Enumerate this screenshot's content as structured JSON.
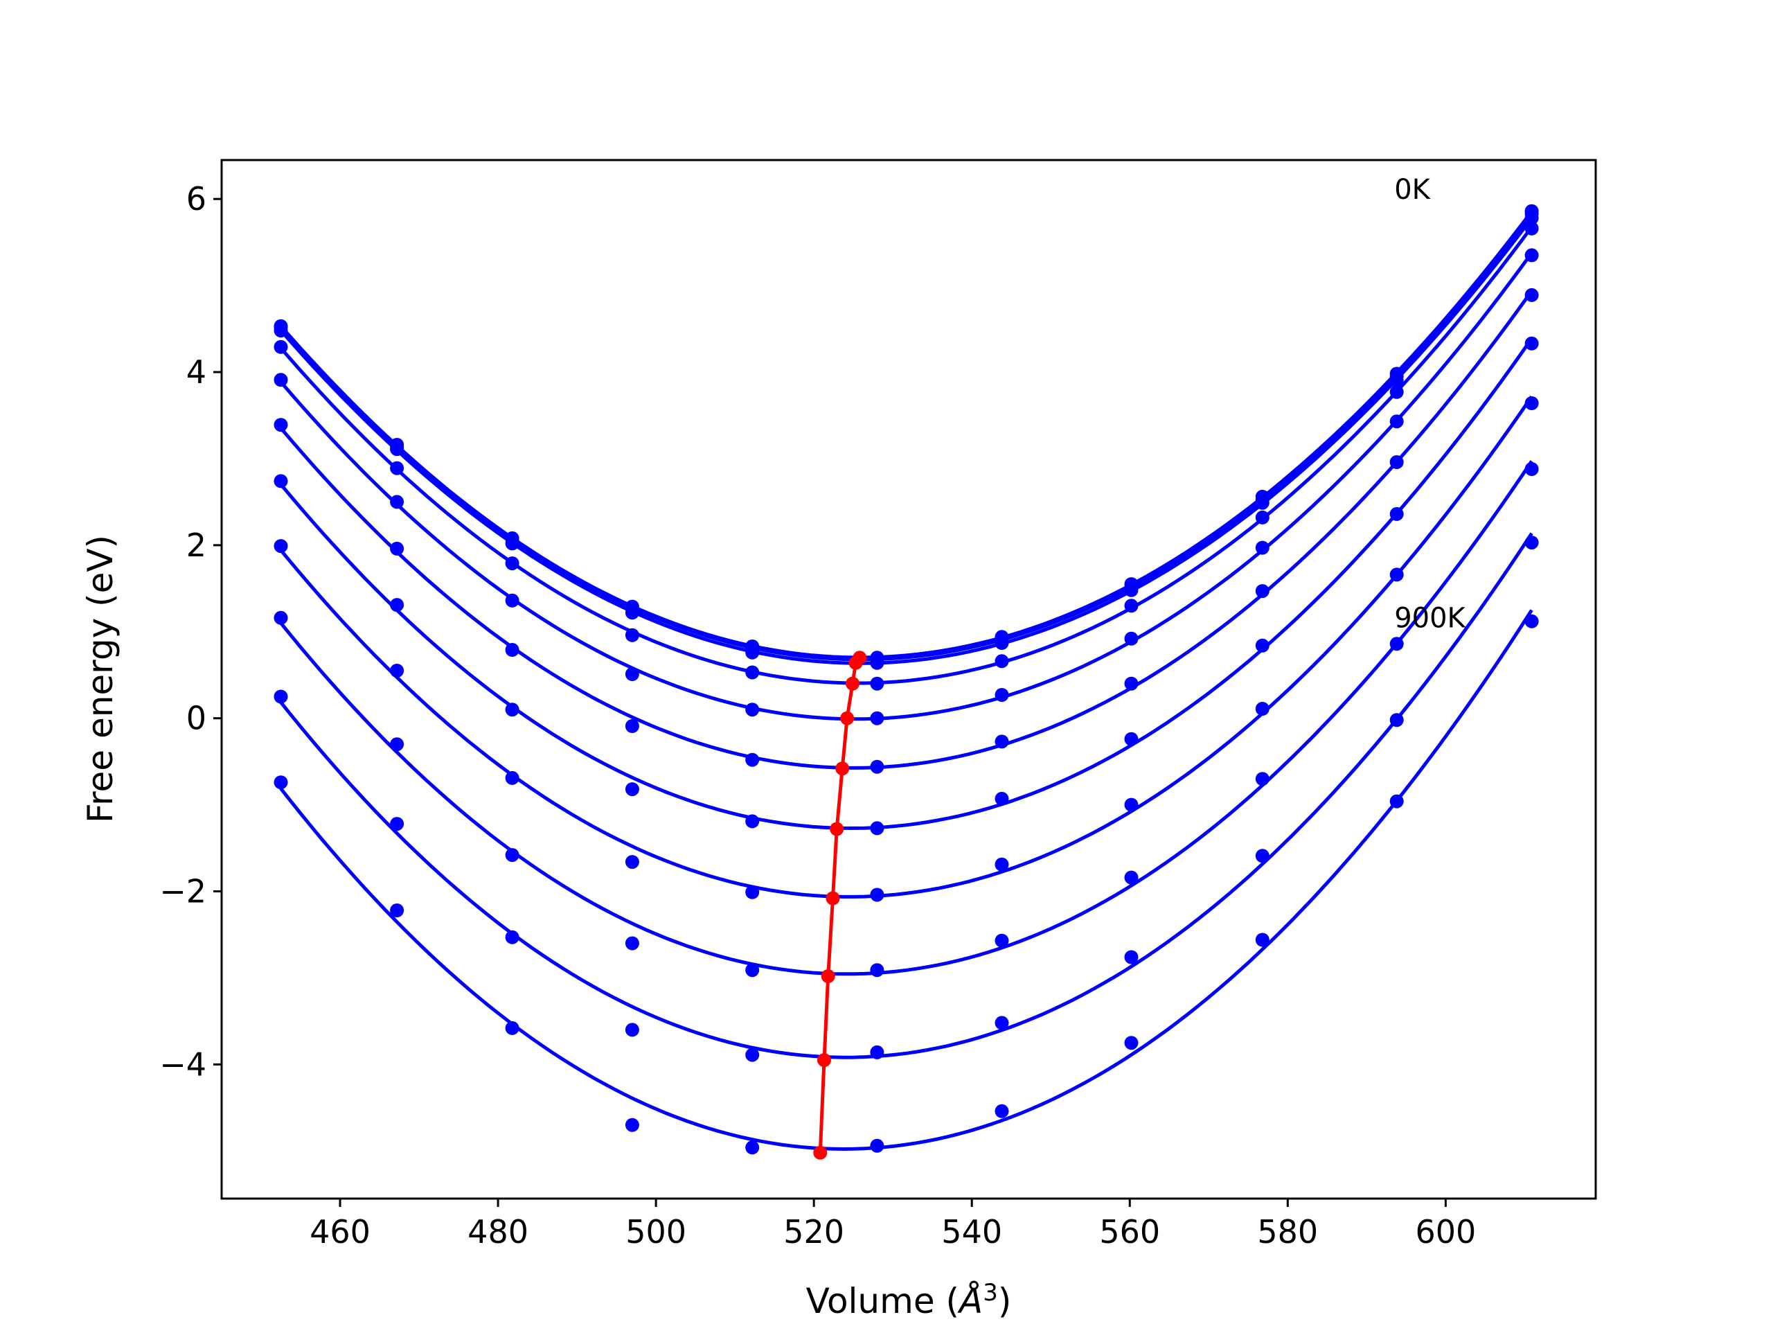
{
  "chart_data": {
    "type": "line",
    "title": "",
    "xlabel_prefix": "Volume (",
    "xlabel_unit": "Å",
    "xlabel_exp": "3",
    "xlabel_suffix": ")",
    "ylabel": "Free energy (eV)",
    "xlim": [
      445,
      619
    ],
    "ylim": [
      -5.55,
      6.45
    ],
    "xticks": [
      460,
      480,
      500,
      520,
      540,
      560,
      580,
      600
    ],
    "yticks": [
      -4,
      -2,
      0,
      2,
      4,
      6
    ],
    "grid": false,
    "legend": "none",
    "colors": {
      "curves": "#0000ff",
      "minimum": "#ff0000",
      "frame": "#000000"
    },
    "x": [
      452.5,
      467.2,
      481.8,
      497.0,
      512.2,
      528.0,
      543.8,
      560.2,
      576.8,
      593.8,
      610.9
    ],
    "annotations": [
      {
        "text": "0K",
        "x": 593.5,
        "y": 6.0
      },
      {
        "text": "900K",
        "x": 593.5,
        "y": 1.05
      }
    ],
    "series": [
      {
        "values": [
          4.53,
          3.16,
          2.08,
          1.29,
          0.83,
          0.7,
          0.94,
          1.55,
          2.56,
          3.98,
          5.86
        ]
      },
      {
        "values": [
          4.52,
          3.14,
          2.07,
          1.27,
          0.81,
          0.68,
          0.91,
          1.52,
          2.53,
          3.95,
          5.83
        ]
      },
      {
        "values": [
          4.48,
          3.11,
          2.02,
          1.22,
          0.76,
          0.64,
          0.87,
          1.48,
          2.49,
          3.9,
          5.78
        ]
      },
      {
        "values": [
          4.29,
          2.89,
          1.79,
          0.96,
          0.53,
          0.4,
          0.66,
          1.3,
          2.32,
          3.77,
          5.66
        ]
      },
      {
        "values": [
          3.91,
          2.5,
          1.36,
          0.51,
          0.1,
          0.0,
          0.27,
          0.92,
          1.97,
          3.43,
          5.35
        ]
      },
      {
        "values": [
          3.39,
          1.96,
          0.79,
          -0.09,
          -0.48,
          -0.56,
          -0.27,
          0.4,
          1.47,
          2.96,
          4.89
        ]
      },
      {
        "values": [
          2.74,
          1.31,
          0.1,
          -0.82,
          -1.19,
          -1.27,
          -0.93,
          -0.24,
          0.84,
          2.36,
          4.33
        ]
      },
      {
        "values": [
          1.99,
          0.55,
          -0.69,
          -1.66,
          -2.01,
          -2.04,
          -1.69,
          -1.0,
          0.11,
          1.66,
          3.64
        ]
      },
      {
        "values": [
          1.16,
          -0.3,
          -1.58,
          -2.6,
          -2.91,
          -2.91,
          -2.57,
          -1.84,
          -0.7,
          0.86,
          2.88
        ]
      },
      {
        "values": [
          0.25,
          -1.22,
          -2.53,
          -3.6,
          -3.89,
          -3.86,
          -3.52,
          -2.76,
          -1.59,
          -0.02,
          2.03
        ]
      },
      {
        "values": [
          -0.74,
          -2.22,
          -3.58,
          -4.7,
          -4.96,
          -4.94,
          -4.54,
          -3.75,
          -2.56,
          -0.96,
          1.12
        ]
      }
    ],
    "minimum_curve": {
      "x": [
        525.8,
        525.3,
        524.9,
        524.2,
        523.6,
        522.9,
        522.4,
        521.8,
        521.3,
        520.8
      ],
      "y": [
        0.7,
        0.64,
        0.4,
        0.0,
        -0.58,
        -1.28,
        -2.08,
        -2.98,
        -3.95,
        -5.02
      ]
    }
  }
}
